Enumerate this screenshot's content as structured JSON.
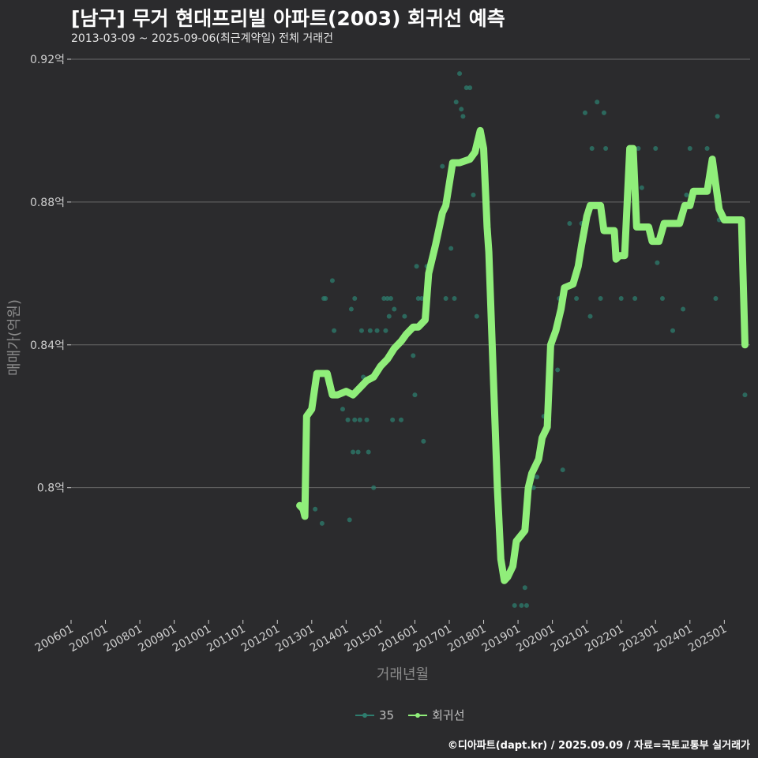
{
  "title": "[남구] 무거 현대프리빌 아파트(2003) 회귀선 예측",
  "subtitle": "2013-03-09 ~ 2025-09-06(최근계약일) 전체 거래건",
  "caption": "©디아파트(dapt.kr) / 2025.09.09 / 자료=국토교통부 실거래가",
  "colors": {
    "background": "#2b2b2d",
    "points": "#2e7d6e",
    "regression": "#90ee7a",
    "grid": "#6a6a6a"
  },
  "chart_data": {
    "type": "line",
    "xlabel": "거래년월",
    "ylabel": "매매가(억원)",
    "xlim": [
      2006.0,
      2025.75
    ],
    "ylim": [
      0.763,
      0.92
    ],
    "y_ticks": [
      0.8,
      0.84,
      0.88,
      0.92
    ],
    "y_tick_labels": [
      "0.8억",
      "0.84억",
      "0.88억",
      "0.92억"
    ],
    "x_ticks": [
      2006.0,
      2007.0,
      2008.0,
      2009.0,
      2010.0,
      2011.0,
      2012.0,
      2013.0,
      2014.0,
      2015.0,
      2016.0,
      2017.0,
      2018.0,
      2019.0,
      2020.0,
      2021.0,
      2022.0,
      2023.0,
      2024.0,
      2025.0
    ],
    "x_tick_labels": [
      "200601",
      "200701",
      "200801",
      "200901",
      "201001",
      "201101",
      "201201",
      "201301",
      "201401",
      "201501",
      "201601",
      "201701",
      "201801",
      "201901",
      "202001",
      "202101",
      "202201",
      "202301",
      "202401",
      "202501"
    ],
    "legend": [
      "35",
      "회귀선"
    ],
    "series": [
      {
        "name": "35",
        "kind": "scatter",
        "points": [
          [
            2013.1,
            0.794
          ],
          [
            2013.3,
            0.79
          ],
          [
            2013.35,
            0.853
          ],
          [
            2013.4,
            0.853
          ],
          [
            2013.6,
            0.858
          ],
          [
            2013.65,
            0.844
          ],
          [
            2013.9,
            0.822
          ],
          [
            2014.05,
            0.819
          ],
          [
            2014.1,
            0.791
          ],
          [
            2014.15,
            0.85
          ],
          [
            2014.2,
            0.81
          ],
          [
            2014.25,
            0.853
          ],
          [
            2014.25,
            0.819
          ],
          [
            2014.35,
            0.81
          ],
          [
            2014.4,
            0.819
          ],
          [
            2014.45,
            0.844
          ],
          [
            2014.5,
            0.831
          ],
          [
            2014.6,
            0.819
          ],
          [
            2014.65,
            0.81
          ],
          [
            2014.7,
            0.844
          ],
          [
            2014.8,
            0.8
          ],
          [
            2014.9,
            0.844
          ],
          [
            2014.95,
            0.833
          ],
          [
            2015.1,
            0.853
          ],
          [
            2015.15,
            0.844
          ],
          [
            2015.2,
            0.853
          ],
          [
            2015.25,
            0.848
          ],
          [
            2015.3,
            0.853
          ],
          [
            2015.35,
            0.819
          ],
          [
            2015.4,
            0.85
          ],
          [
            2015.6,
            0.819
          ],
          [
            2015.7,
            0.848
          ],
          [
            2015.95,
            0.837
          ],
          [
            2016.0,
            0.826
          ],
          [
            2016.05,
            0.862
          ],
          [
            2016.1,
            0.853
          ],
          [
            2016.2,
            0.853
          ],
          [
            2016.25,
            0.813
          ],
          [
            2016.3,
            0.853
          ],
          [
            2016.35,
            0.862
          ],
          [
            2016.8,
            0.89
          ],
          [
            2016.9,
            0.853
          ],
          [
            2017.05,
            0.867
          ],
          [
            2017.15,
            0.853
          ],
          [
            2017.2,
            0.908
          ],
          [
            2017.3,
            0.916
          ],
          [
            2017.35,
            0.906
          ],
          [
            2017.4,
            0.904
          ],
          [
            2017.5,
            0.912
          ],
          [
            2017.6,
            0.912
          ],
          [
            2017.7,
            0.882
          ],
          [
            2017.8,
            0.848
          ],
          [
            2018.9,
            0.767
          ],
          [
            2019.1,
            0.767
          ],
          [
            2019.2,
            0.772
          ],
          [
            2019.25,
            0.767
          ],
          [
            2019.45,
            0.8
          ],
          [
            2019.55,
            0.803
          ],
          [
            2019.75,
            0.82
          ],
          [
            2019.9,
            0.819
          ],
          [
            2020.0,
            0.84
          ],
          [
            2020.15,
            0.833
          ],
          [
            2020.2,
            0.853
          ],
          [
            2020.3,
            0.805
          ],
          [
            2020.5,
            0.874
          ],
          [
            2020.7,
            0.853
          ],
          [
            2020.85,
            0.874
          ],
          [
            2020.95,
            0.905
          ],
          [
            2021.1,
            0.848
          ],
          [
            2021.15,
            0.895
          ],
          [
            2021.3,
            0.908
          ],
          [
            2021.4,
            0.853
          ],
          [
            2021.5,
            0.905
          ],
          [
            2021.55,
            0.895
          ],
          [
            2022.0,
            0.853
          ],
          [
            2022.4,
            0.853
          ],
          [
            2022.5,
            0.895
          ],
          [
            2022.6,
            0.884
          ],
          [
            2023.0,
            0.895
          ],
          [
            2023.05,
            0.863
          ],
          [
            2023.2,
            0.853
          ],
          [
            2023.5,
            0.844
          ],
          [
            2023.8,
            0.85
          ],
          [
            2023.9,
            0.882
          ],
          [
            2024.0,
            0.895
          ],
          [
            2024.5,
            0.895
          ],
          [
            2024.75,
            0.853
          ],
          [
            2024.8,
            0.904
          ],
          [
            2024.85,
            0.875
          ],
          [
            2025.6,
            0.826
          ]
        ]
      },
      {
        "name": "회귀선",
        "kind": "line",
        "points": [
          [
            2012.65,
            0.795
          ],
          [
            2012.75,
            0.794
          ],
          [
            2012.8,
            0.792
          ],
          [
            2012.85,
            0.82
          ],
          [
            2013.0,
            0.822
          ],
          [
            2013.15,
            0.832
          ],
          [
            2013.45,
            0.832
          ],
          [
            2013.6,
            0.826
          ],
          [
            2013.75,
            0.826
          ],
          [
            2014.0,
            0.827
          ],
          [
            2014.2,
            0.826
          ],
          [
            2014.4,
            0.828
          ],
          [
            2014.6,
            0.83
          ],
          [
            2014.8,
            0.831
          ],
          [
            2015.0,
            0.834
          ],
          [
            2015.2,
            0.836
          ],
          [
            2015.4,
            0.839
          ],
          [
            2015.6,
            0.841
          ],
          [
            2015.75,
            0.843
          ],
          [
            2015.95,
            0.845
          ],
          [
            2016.1,
            0.845
          ],
          [
            2016.3,
            0.847
          ],
          [
            2016.4,
            0.86
          ],
          [
            2016.6,
            0.868
          ],
          [
            2016.8,
            0.877
          ],
          [
            2016.9,
            0.879
          ],
          [
            2017.1,
            0.891
          ],
          [
            2017.3,
            0.891
          ],
          [
            2017.6,
            0.892
          ],
          [
            2017.75,
            0.894
          ],
          [
            2017.9,
            0.9
          ],
          [
            2018.0,
            0.895
          ],
          [
            2018.1,
            0.873
          ],
          [
            2018.15,
            0.866
          ],
          [
            2018.4,
            0.8
          ],
          [
            2018.5,
            0.78
          ],
          [
            2018.6,
            0.774
          ],
          [
            2018.7,
            0.775
          ],
          [
            2018.85,
            0.778
          ],
          [
            2018.95,
            0.785
          ],
          [
            2019.2,
            0.788
          ],
          [
            2019.3,
            0.8
          ],
          [
            2019.4,
            0.804
          ],
          [
            2019.6,
            0.808
          ],
          [
            2019.7,
            0.814
          ],
          [
            2019.85,
            0.817
          ],
          [
            2019.95,
            0.84
          ],
          [
            2020.1,
            0.844
          ],
          [
            2020.25,
            0.85
          ],
          [
            2020.35,
            0.856
          ],
          [
            2020.6,
            0.857
          ],
          [
            2020.75,
            0.862
          ],
          [
            2020.85,
            0.868
          ],
          [
            2021.0,
            0.876
          ],
          [
            2021.1,
            0.879
          ],
          [
            2021.4,
            0.879
          ],
          [
            2021.5,
            0.872
          ],
          [
            2021.8,
            0.872
          ],
          [
            2021.85,
            0.864
          ],
          [
            2021.95,
            0.865
          ],
          [
            2022.1,
            0.865
          ],
          [
            2022.25,
            0.895
          ],
          [
            2022.35,
            0.895
          ],
          [
            2022.45,
            0.873
          ],
          [
            2022.8,
            0.873
          ],
          [
            2022.9,
            0.869
          ],
          [
            2023.1,
            0.869
          ],
          [
            2023.25,
            0.874
          ],
          [
            2023.7,
            0.874
          ],
          [
            2023.85,
            0.879
          ],
          [
            2024.0,
            0.879
          ],
          [
            2024.1,
            0.883
          ],
          [
            2024.5,
            0.883
          ],
          [
            2024.65,
            0.892
          ],
          [
            2024.85,
            0.878
          ],
          [
            2025.0,
            0.875
          ],
          [
            2025.5,
            0.875
          ],
          [
            2025.6,
            0.84
          ]
        ]
      }
    ]
  }
}
